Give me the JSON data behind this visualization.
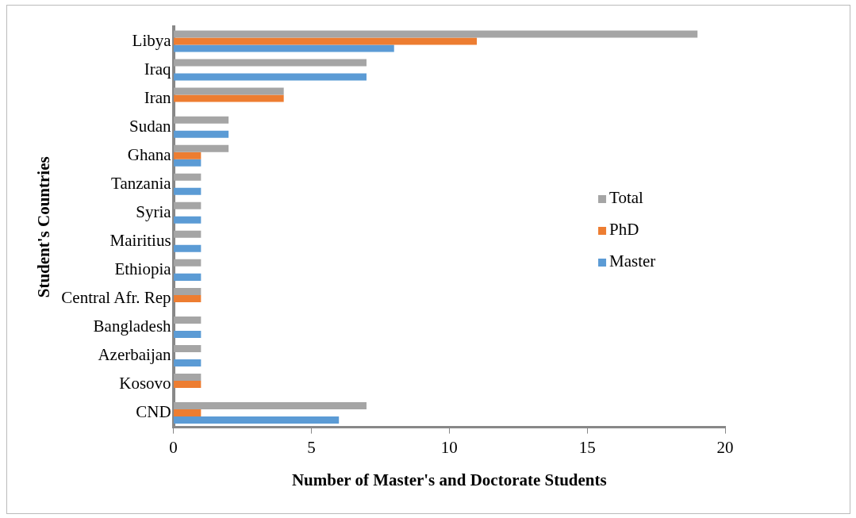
{
  "chart_data": {
    "type": "bar",
    "orientation": "horizontal",
    "xlabel": "Number of Master's and Doctorate Students",
    "ylabel": "Student's Countries",
    "categories": [
      "Libya",
      "Iraq",
      "Iran",
      "Sudan",
      "Ghana",
      "Tanzania",
      "Syria",
      "Mairitius",
      "Ethiopia",
      "Central Afr. Rep",
      "Bangladesh",
      "Azerbaijan",
      "Kosovo",
      "CND"
    ],
    "series": [
      {
        "name": "Total",
        "color": "#a5a5a5",
        "values": [
          19,
          7,
          4,
          2,
          2,
          1,
          1,
          1,
          1,
          1,
          1,
          1,
          1,
          7
        ]
      },
      {
        "name": "PhD",
        "color": "#ed7d31",
        "values": [
          11,
          null,
          4,
          null,
          1,
          null,
          null,
          null,
          null,
          1,
          null,
          null,
          1,
          1
        ]
      },
      {
        "name": "Master",
        "color": "#5b9bd5",
        "values": [
          8,
          7,
          null,
          2,
          1,
          1,
          1,
          1,
          1,
          null,
          1,
          1,
          null,
          6
        ]
      }
    ],
    "xlim": [
      0,
      20
    ],
    "xticks": [
      0,
      5,
      10,
      15,
      20
    ],
    "grid": false,
    "legend": "right"
  }
}
